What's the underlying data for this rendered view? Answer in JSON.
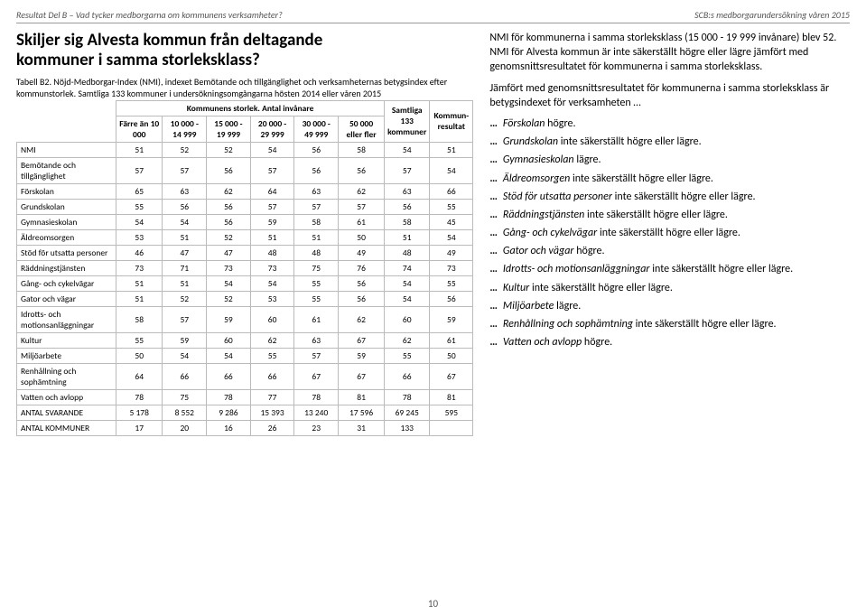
{
  "topbar": {
    "left": "Resultat Del B – Vad tycker medborgarna om kommunens verksamheter?",
    "right": "SCB:s medborgarundersökning våren 2015"
  },
  "title_line1": "Skiljer sig Alvesta kommun från deltagande",
  "title_line2": "kommuner i samma storleksklass?",
  "table_caption": "Tabell B2. Nöjd-Medborgar-Index (NMI), indexet Bemötande och tillgänglighet och verksamheternas betygsindex efter kommunstorlek. Samtliga 133 kommuner i undersökningsomgångarna hösten 2014 eller våren 2015",
  "table": {
    "super_header": "Kommunens storlek. Antal invånare",
    "col_headers": [
      "Färre än 10 000",
      "10 000 - 14 999",
      "15 000 - 19 999",
      "20 000 - 29 999",
      "30 000 - 49 999",
      "50 000 eller fler",
      "Samtliga 133 kommuner",
      "Kommun-resultat"
    ],
    "rows": [
      {
        "label": "NMI",
        "v": [
          51,
          52,
          52,
          54,
          56,
          58,
          54,
          51
        ]
      },
      {
        "label": "Bemötande och tillgänglighet",
        "v": [
          57,
          57,
          56,
          57,
          56,
          56,
          57,
          54
        ]
      },
      {
        "label": "Förskolan",
        "v": [
          65,
          63,
          62,
          64,
          63,
          62,
          63,
          66
        ]
      },
      {
        "label": "Grundskolan",
        "v": [
          55,
          56,
          56,
          57,
          57,
          57,
          56,
          55
        ]
      },
      {
        "label": "Gymnasieskolan",
        "v": [
          54,
          54,
          56,
          59,
          58,
          61,
          58,
          45
        ]
      },
      {
        "label": "Äldreomsorgen",
        "v": [
          53,
          51,
          52,
          51,
          51,
          50,
          51,
          54
        ]
      },
      {
        "label": "Stöd för utsatta personer",
        "v": [
          46,
          47,
          47,
          48,
          48,
          49,
          48,
          49
        ]
      },
      {
        "label": "Räddningstjänsten",
        "v": [
          73,
          71,
          73,
          73,
          75,
          76,
          74,
          73
        ]
      },
      {
        "label": "Gång- och cykelvägar",
        "v": [
          51,
          51,
          54,
          54,
          55,
          56,
          54,
          55
        ]
      },
      {
        "label": "Gator och vägar",
        "v": [
          51,
          52,
          52,
          53,
          55,
          56,
          54,
          56
        ]
      },
      {
        "label": "Idrotts- och motionsanläggningar",
        "v": [
          58,
          57,
          59,
          60,
          61,
          62,
          60,
          59
        ]
      },
      {
        "label": "Kultur",
        "v": [
          55,
          59,
          60,
          62,
          63,
          67,
          62,
          61
        ]
      },
      {
        "label": "Miljöarbete",
        "v": [
          50,
          54,
          54,
          55,
          57,
          59,
          55,
          50
        ]
      },
      {
        "label": "Renhållning och sophämtning",
        "v": [
          64,
          66,
          66,
          66,
          67,
          67,
          66,
          67
        ]
      },
      {
        "label": "Vatten och avlopp",
        "v": [
          78,
          75,
          78,
          77,
          78,
          81,
          78,
          81
        ]
      },
      {
        "label": "ANTAL SVARANDE",
        "v": [
          "5 178",
          "8 552",
          "9 286",
          "15 393",
          "13 240",
          "17 596",
          "69 245",
          "595"
        ]
      },
      {
        "label": "ANTAL KOMMUNER",
        "v": [
          17,
          20,
          16,
          26,
          23,
          31,
          133,
          ""
        ]
      }
    ]
  },
  "right": {
    "p1": "NMI för kommunerna i samma storleksklass (15 000 - 19 999 invånare) blev 52. NMI för Alvesta kommun är inte säkerställt högre eller lägre jämfört med genomsnittsresultatet för kommunerna i samma storleksklass.",
    "p2": "Jämfört med genomsnittsresultatet för kommunerna i samma storleksklass är betygsindexet för verksamheten …",
    "bullets": [
      {
        "label": "Förskolan",
        "rest": "högre."
      },
      {
        "label": "Grundskolan",
        "rest": "inte säkerställt högre eller lägre."
      },
      {
        "label": "Gymnasieskolan",
        "rest": "lägre."
      },
      {
        "label": "Äldreomsorgen",
        "rest": "inte säkerställt högre eller lägre."
      },
      {
        "label": "Stöd för utsatta personer",
        "rest": "inte säkerställt högre eller lägre."
      },
      {
        "label": "Räddningstjänsten",
        "rest": "inte säkerställt högre eller lägre."
      },
      {
        "label": "Gång- och cykelvägar",
        "rest": "inte säkerställt högre eller lägre."
      },
      {
        "label": "Gator och vägar",
        "rest": "högre."
      },
      {
        "label": "Idrotts- och motionsanläggningar",
        "rest": "inte säkerställt högre eller lägre."
      },
      {
        "label": "Kultur",
        "rest": "inte säkerställt högre eller lägre."
      },
      {
        "label": "Miljöarbete",
        "rest": "lägre."
      },
      {
        "label": "Renhållning och sophämtning",
        "rest": "inte säkerställt högre eller lägre."
      },
      {
        "label": "Vatten och avlopp",
        "rest": "högre."
      }
    ]
  },
  "footer": "10"
}
